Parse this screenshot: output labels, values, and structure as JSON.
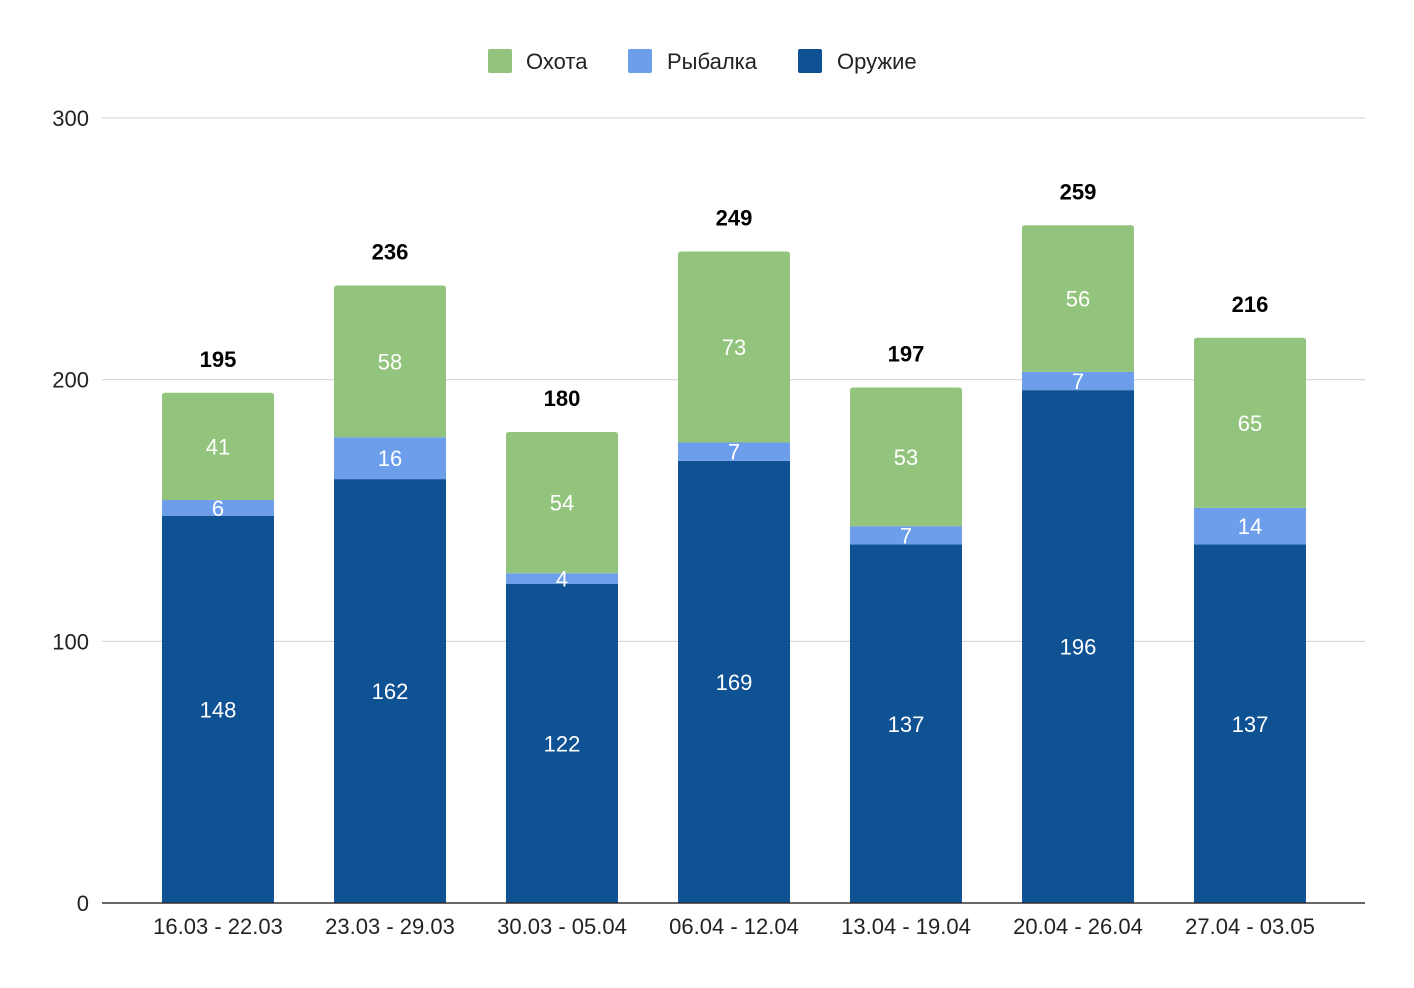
{
  "chart_data": {
    "type": "bar",
    "stacked": true,
    "categories": [
      "16.03 - 22.03",
      "23.03 - 29.03",
      "30.03 - 05.04",
      "06.04 - 12.04",
      "13.04 - 19.04",
      "20.04 - 26.04",
      "27.04 - 03.05"
    ],
    "series": [
      {
        "name": "Оружие",
        "color": "#0f5294",
        "values": [
          148,
          162,
          122,
          169,
          137,
          196,
          137
        ]
      },
      {
        "name": "Рыбалка",
        "color": "#6d9eeb",
        "values": [
          6,
          16,
          4,
          7,
          7,
          7,
          14
        ]
      },
      {
        "name": "Охота",
        "color": "#93c47d",
        "values": [
          41,
          58,
          54,
          73,
          53,
          56,
          65
        ]
      }
    ],
    "totals": [
      195,
      236,
      180,
      249,
      197,
      259,
      216
    ],
    "legend_order": [
      "Охота",
      "Рыбалка",
      "Оружие"
    ],
    "legend_position": "top",
    "ylim": [
      0,
      300
    ],
    "yticks": [
      0,
      100,
      200,
      300
    ],
    "grid": true,
    "title": "",
    "xlabel": "",
    "ylabel": ""
  }
}
